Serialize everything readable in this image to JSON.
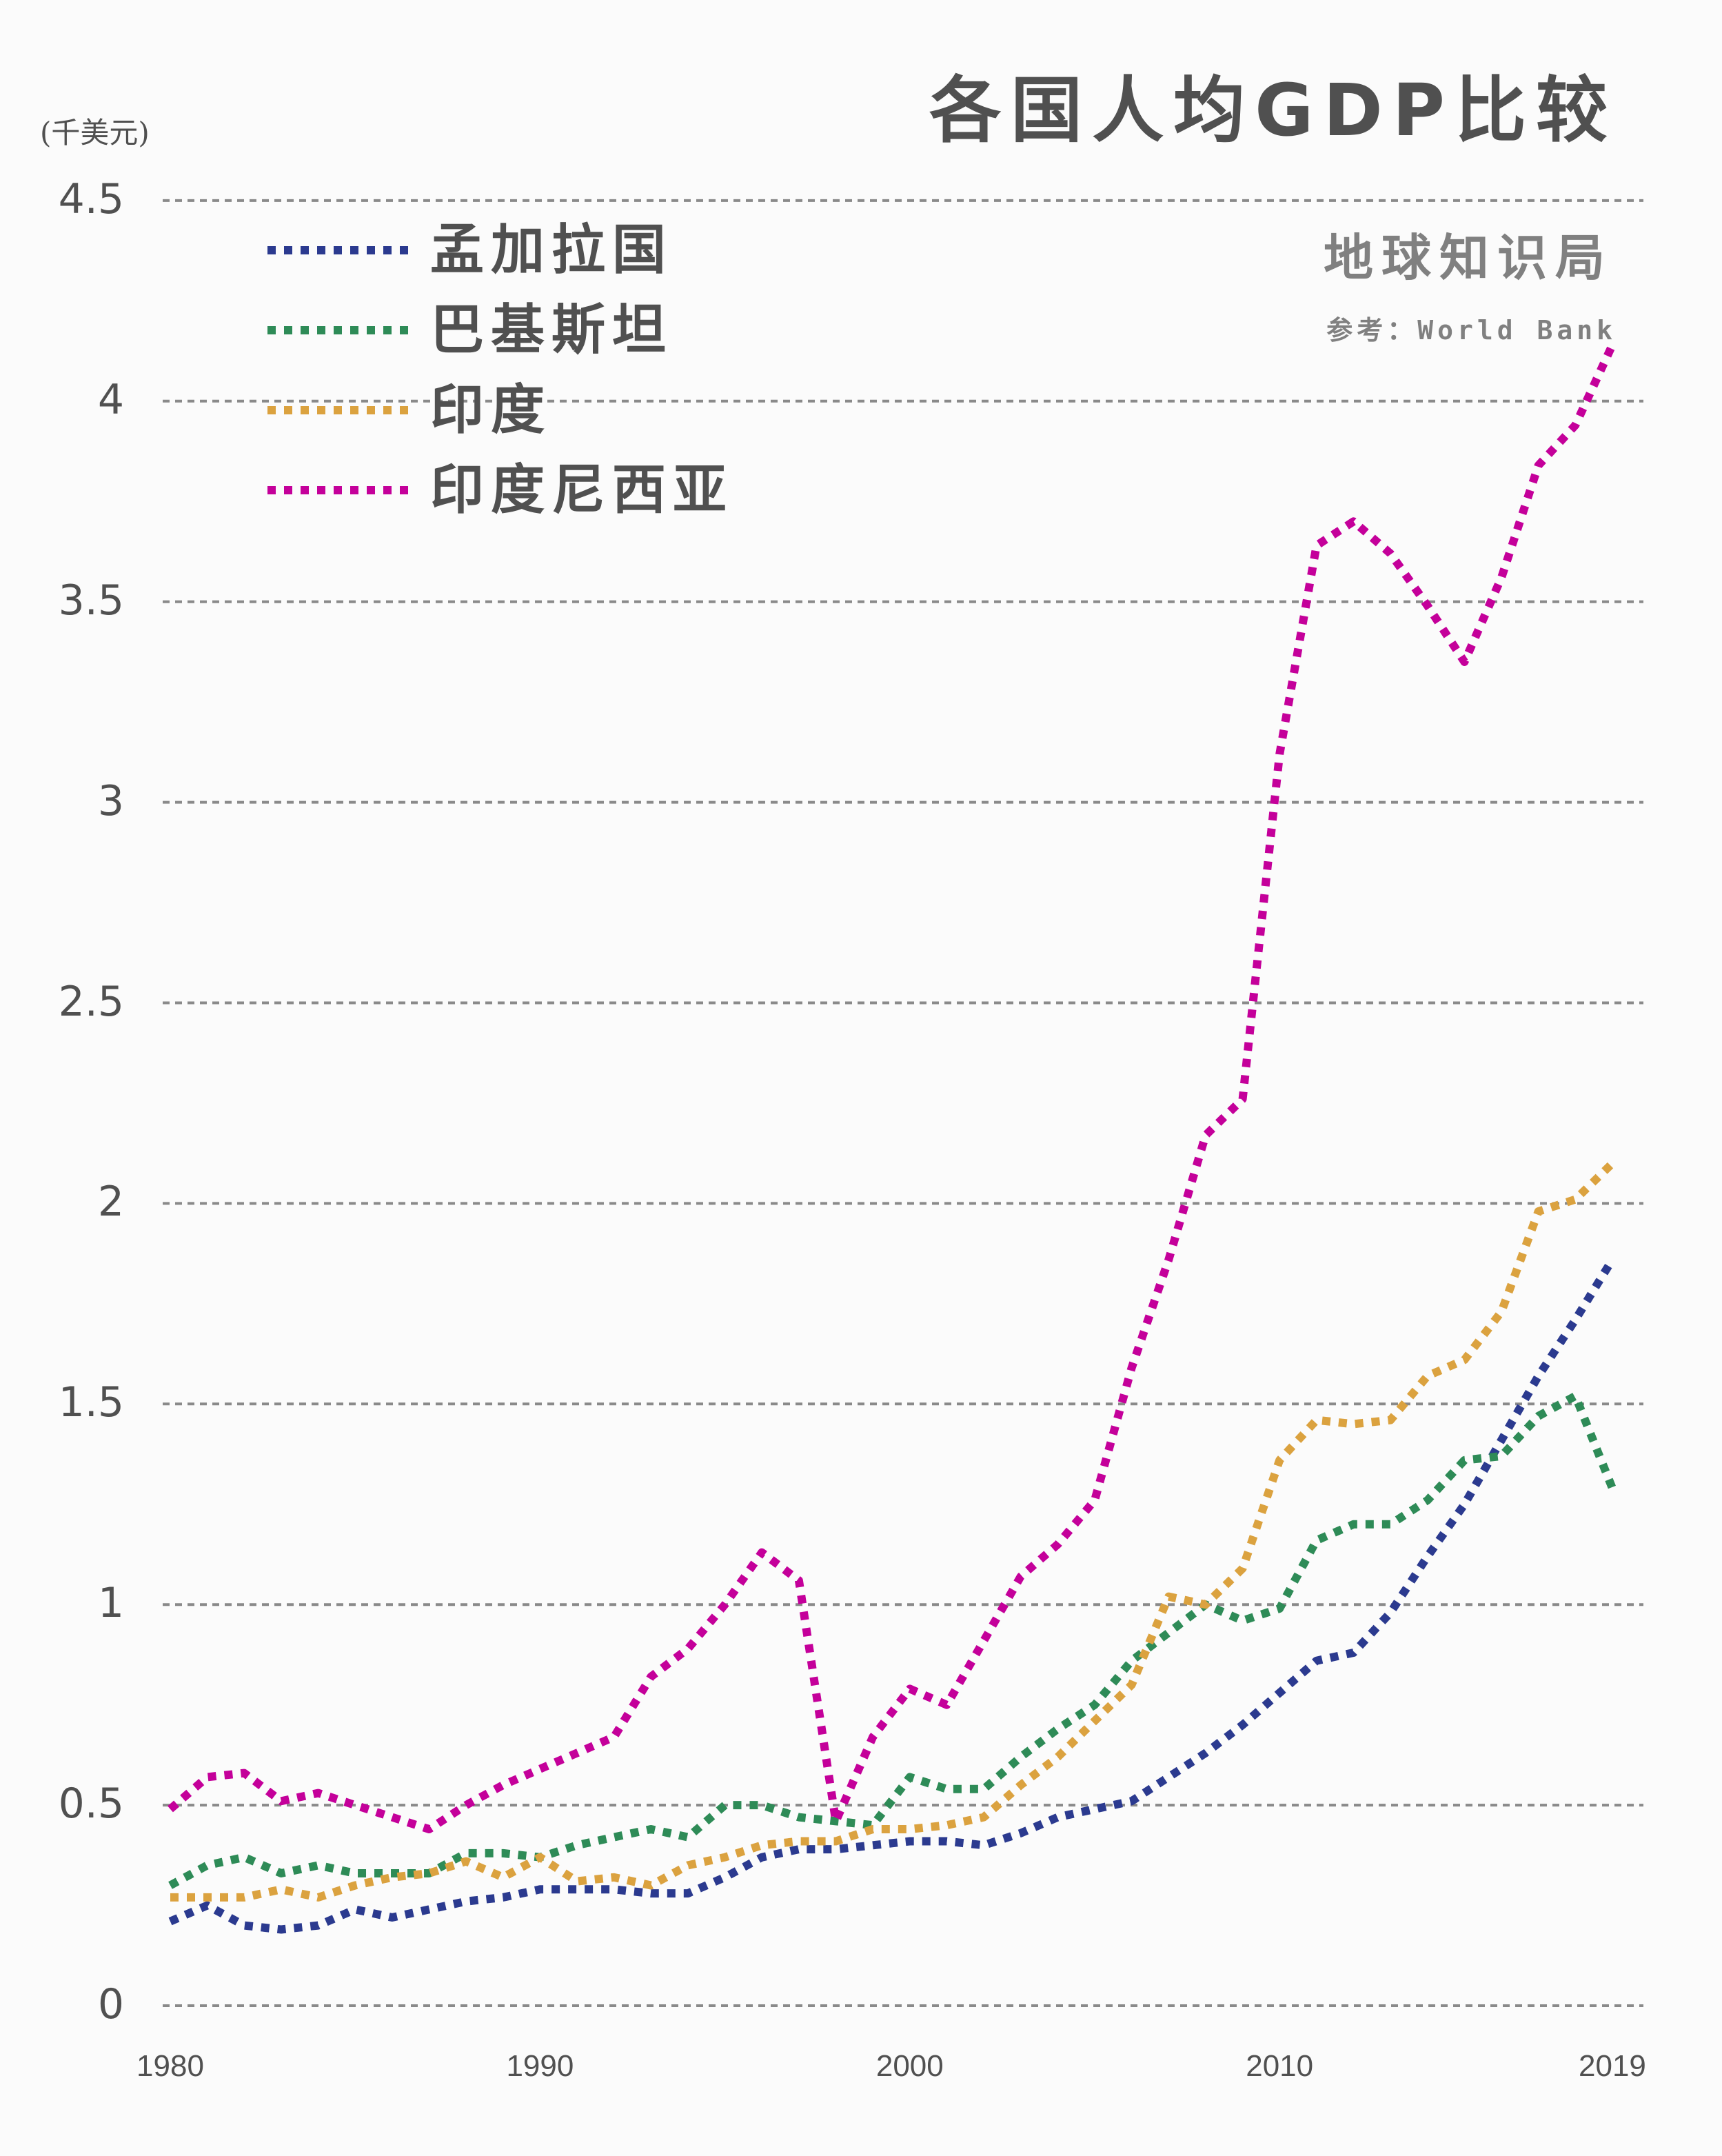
{
  "header": {
    "title": "各国人均GDP比较",
    "brand": "地球知识局",
    "source": "参考：World Bank",
    "unit": "(千美元)"
  },
  "colors": {
    "bangladesh": "#2b3a8f",
    "pakistan": "#2e8b57",
    "india": "#dba23f",
    "indonesia": "#c4009a",
    "grid": "#8a8a8a",
    "text": "#505050",
    "background": "#fbfbfb"
  },
  "legend": [
    {
      "label": "孟加拉国",
      "color": "#2b3a8f"
    },
    {
      "label": "巴基斯坦",
      "color": "#2e8b57"
    },
    {
      "label": "印度",
      "color": "#dba23f"
    },
    {
      "label": "印度尼西亚",
      "color": "#c4009a"
    }
  ],
  "axes": {
    "y_ticks": [
      "0",
      "0.5",
      "1",
      "1.5",
      "2",
      "2.5",
      "3",
      "3.5",
      "4",
      "4.5"
    ],
    "x_ticks": [
      "1980",
      "1990",
      "2000",
      "2010",
      "2019"
    ]
  },
  "chart_data": {
    "type": "line",
    "title": "各国人均GDP比较",
    "subtitle": "地球知识局 · 参考：World Bank",
    "xlabel": "",
    "ylabel": "(千美元)",
    "ylim": [
      0,
      4.5
    ],
    "xlim": [
      1980,
      2019
    ],
    "grid": true,
    "legend_position": "top-left",
    "x": [
      1980,
      1981,
      1982,
      1983,
      1984,
      1985,
      1986,
      1987,
      1988,
      1989,
      1990,
      1991,
      1992,
      1993,
      1994,
      1995,
      1996,
      1997,
      1998,
      1999,
      2000,
      2001,
      2002,
      2003,
      2004,
      2005,
      2006,
      2007,
      2008,
      2009,
      2010,
      2011,
      2012,
      2013,
      2014,
      2015,
      2016,
      2017,
      2018,
      2019
    ],
    "series": [
      {
        "name": "孟加拉国",
        "color": "#2b3a8f",
        "values": [
          0.21,
          0.25,
          0.2,
          0.19,
          0.2,
          0.24,
          0.22,
          0.24,
          0.26,
          0.27,
          0.29,
          0.29,
          0.29,
          0.28,
          0.28,
          0.32,
          0.37,
          0.39,
          0.39,
          0.4,
          0.41,
          0.41,
          0.4,
          0.43,
          0.47,
          0.49,
          0.51,
          0.57,
          0.63,
          0.7,
          0.78,
          0.86,
          0.88,
          0.98,
          1.12,
          1.25,
          1.41,
          1.57,
          1.71,
          1.86
        ]
      },
      {
        "name": "巴基斯坦",
        "color": "#2e8b57",
        "values": [
          0.3,
          0.35,
          0.37,
          0.33,
          0.35,
          0.33,
          0.33,
          0.33,
          0.38,
          0.38,
          0.37,
          0.4,
          0.42,
          0.44,
          0.42,
          0.5,
          0.5,
          0.47,
          0.46,
          0.45,
          0.57,
          0.54,
          0.54,
          0.62,
          0.69,
          0.75,
          0.86,
          0.93,
          1.0,
          0.96,
          0.99,
          1.16,
          1.2,
          1.2,
          1.26,
          1.36,
          1.37,
          1.47,
          1.52,
          1.29
        ]
      },
      {
        "name": "印度",
        "color": "#dba23f",
        "values": [
          0.27,
          0.27,
          0.27,
          0.29,
          0.27,
          0.3,
          0.32,
          0.33,
          0.36,
          0.32,
          0.37,
          0.31,
          0.32,
          0.3,
          0.35,
          0.37,
          0.4,
          0.41,
          0.41,
          0.44,
          0.44,
          0.45,
          0.47,
          0.55,
          0.62,
          0.71,
          0.8,
          1.02,
          1.0,
          1.09,
          1.36,
          1.46,
          1.45,
          1.46,
          1.57,
          1.61,
          1.73,
          1.98,
          2.01,
          2.1
        ]
      },
      {
        "name": "印度尼西亚",
        "color": "#c4009a",
        "values": [
          0.49,
          0.57,
          0.58,
          0.51,
          0.53,
          0.5,
          0.47,
          0.44,
          0.5,
          0.55,
          0.59,
          0.63,
          0.67,
          0.82,
          0.89,
          1.0,
          1.13,
          1.06,
          0.46,
          0.67,
          0.79,
          0.75,
          0.91,
          1.07,
          1.15,
          1.26,
          1.59,
          1.86,
          2.17,
          2.26,
          3.12,
          3.64,
          3.7,
          3.62,
          3.49,
          3.35,
          3.56,
          3.84,
          3.94,
          4.14
        ]
      }
    ]
  }
}
